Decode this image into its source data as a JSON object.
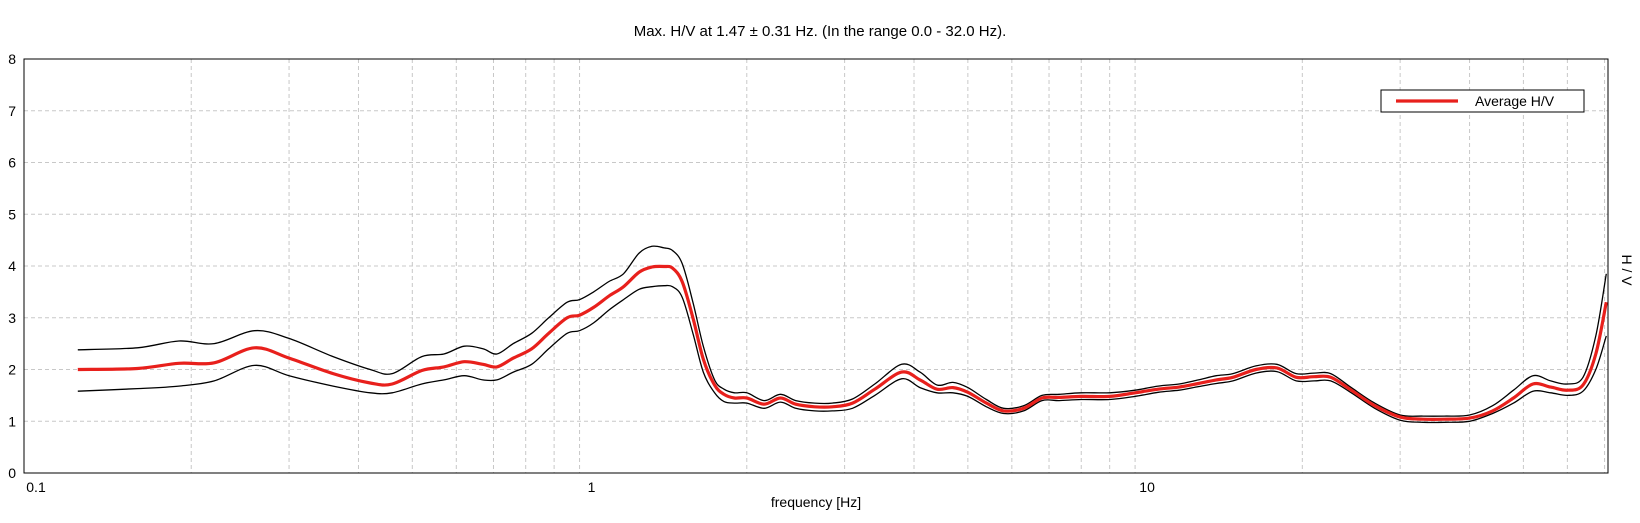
{
  "chart_data": {
    "type": "line",
    "title": "Max. H/V at 1.47 ± 0.31 Hz. (In the range 0.0 - 32.0 Hz).",
    "xlabel": "frequency [Hz]",
    "ylabel": "H / V",
    "x_scale": "log",
    "xlim": [
      0.1,
      71
    ],
    "ylim": [
      0,
      8
    ],
    "x_ticks": [
      "0.1",
      "1",
      "10"
    ],
    "y_ticks": [
      "0",
      "1",
      "2",
      "3",
      "4",
      "5",
      "6",
      "7",
      "8"
    ],
    "grid": true,
    "legend": {
      "position": "top-right",
      "entries": [
        "Average H/V"
      ]
    },
    "colors": {
      "average": "#e8201c",
      "std": "#000000",
      "grid": "#c8c8c8"
    },
    "x": [
      0.125,
      0.16,
      0.19,
      0.22,
      0.26,
      0.3,
      0.36,
      0.42,
      0.46,
      0.52,
      0.57,
      0.62,
      0.67,
      0.71,
      0.76,
      0.82,
      0.88,
      0.95,
      1.0,
      1.06,
      1.13,
      1.2,
      1.28,
      1.35,
      1.42,
      1.47,
      1.53,
      1.6,
      1.67,
      1.75,
      1.82,
      1.9,
      2.0,
      2.15,
      2.3,
      2.45,
      2.65,
      2.85,
      3.1,
      3.4,
      3.8,
      4.1,
      4.4,
      4.7,
      5.0,
      5.4,
      5.8,
      6.3,
      6.8,
      7.3,
      8.0,
      9.0,
      10.0,
      11.0,
      12.0,
      13.0,
      14.0,
      15.0,
      16.5,
      18.0,
      19.5,
      21.0,
      22.5,
      24.5,
      27.0,
      30.0,
      33.0,
      36.0,
      40.0,
      44.0,
      48.0,
      52.0,
      56.0,
      60.0,
      64.0,
      67.5,
      70.5
    ],
    "series": [
      {
        "name": "Average H/V",
        "values": [
          2.0,
          2.02,
          2.12,
          2.13,
          2.42,
          2.22,
          1.92,
          1.74,
          1.72,
          1.98,
          2.05,
          2.15,
          2.1,
          2.05,
          2.22,
          2.4,
          2.7,
          3.0,
          3.05,
          3.2,
          3.42,
          3.6,
          3.88,
          3.98,
          3.99,
          3.96,
          3.7,
          3.0,
          2.2,
          1.7,
          1.52,
          1.45,
          1.45,
          1.33,
          1.45,
          1.33,
          1.28,
          1.28,
          1.35,
          1.62,
          1.95,
          1.8,
          1.62,
          1.65,
          1.56,
          1.35,
          1.2,
          1.25,
          1.45,
          1.46,
          1.48,
          1.48,
          1.55,
          1.62,
          1.66,
          1.73,
          1.8,
          1.85,
          2.0,
          2.03,
          1.85,
          1.86,
          1.85,
          1.6,
          1.3,
          1.08,
          1.04,
          1.04,
          1.06,
          1.2,
          1.45,
          1.72,
          1.66,
          1.6,
          1.7,
          2.3,
          3.3
        ]
      },
      {
        "name": "",
        "values": [
          2.38,
          2.42,
          2.55,
          2.5,
          2.75,
          2.6,
          2.25,
          2.0,
          1.92,
          2.25,
          2.3,
          2.45,
          2.4,
          2.3,
          2.5,
          2.7,
          3.0,
          3.3,
          3.35,
          3.5,
          3.7,
          3.85,
          4.25,
          4.38,
          4.35,
          4.3,
          4.05,
          3.3,
          2.45,
          1.8,
          1.62,
          1.55,
          1.55,
          1.4,
          1.52,
          1.4,
          1.35,
          1.35,
          1.43,
          1.72,
          2.1,
          1.95,
          1.7,
          1.75,
          1.65,
          1.42,
          1.25,
          1.3,
          1.5,
          1.52,
          1.55,
          1.55,
          1.6,
          1.68,
          1.72,
          1.8,
          1.88,
          1.92,
          2.07,
          2.1,
          1.92,
          1.93,
          1.92,
          1.65,
          1.35,
          1.12,
          1.1,
          1.1,
          1.12,
          1.3,
          1.6,
          1.88,
          1.78,
          1.72,
          1.85,
          2.65,
          3.85
        ]
      },
      {
        "name": "",
        "values": [
          1.58,
          1.63,
          1.68,
          1.78,
          2.08,
          1.88,
          1.68,
          1.55,
          1.55,
          1.72,
          1.8,
          1.88,
          1.8,
          1.8,
          1.95,
          2.1,
          2.4,
          2.7,
          2.75,
          2.9,
          3.15,
          3.35,
          3.55,
          3.6,
          3.62,
          3.6,
          3.4,
          2.7,
          1.95,
          1.55,
          1.38,
          1.35,
          1.35,
          1.25,
          1.37,
          1.25,
          1.2,
          1.2,
          1.25,
          1.5,
          1.82,
          1.65,
          1.55,
          1.55,
          1.48,
          1.28,
          1.15,
          1.2,
          1.4,
          1.4,
          1.42,
          1.42,
          1.48,
          1.56,
          1.6,
          1.67,
          1.73,
          1.78,
          1.93,
          1.96,
          1.78,
          1.78,
          1.78,
          1.55,
          1.25,
          1.02,
          0.98,
          0.98,
          1.0,
          1.15,
          1.35,
          1.58,
          1.55,
          1.5,
          1.58,
          2.0,
          2.65
        ]
      }
    ]
  }
}
